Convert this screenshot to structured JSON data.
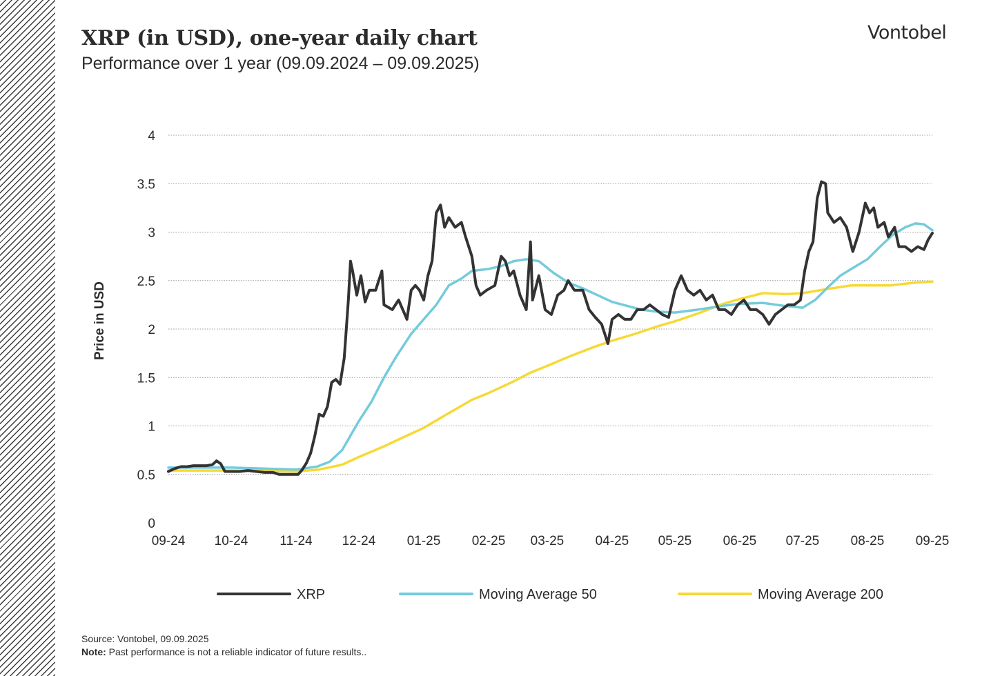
{
  "header": {
    "title": "XRP (in USD), one-year daily chart",
    "subtitle": "Performance over 1 year (09.09.2024 – 09.09.2025)",
    "brand": "Vontobel"
  },
  "footer": {
    "source": "Source: Vontobel, 09.09.2025",
    "note_label": "Note:",
    "note_text": " Past performance is not a reliable indicator of future results.."
  },
  "chart_data": {
    "type": "line",
    "ylabel": "Price in USD",
    "ylim": [
      0,
      4
    ],
    "yticks": [
      0,
      0.5,
      1,
      1.5,
      2,
      2.5,
      3,
      3.5,
      4
    ],
    "ytick_labels": [
      "0",
      "0.5",
      "1",
      "1.5",
      "2",
      "2.5",
      "3",
      "3.5",
      "4"
    ],
    "x_date_range": [
      "2024-09-09",
      "2025-09-09"
    ],
    "xticks": [
      {
        "date": "2024-09-09",
        "label": "09-24"
      },
      {
        "date": "2024-10-09",
        "label": "10-24"
      },
      {
        "date": "2024-11-09",
        "label": "11-24"
      },
      {
        "date": "2024-12-09",
        "label": "12-24"
      },
      {
        "date": "2025-01-09",
        "label": "01-25"
      },
      {
        "date": "2025-02-09",
        "label": "02-25"
      },
      {
        "date": "2025-03-09",
        "label": "03-25"
      },
      {
        "date": "2025-04-09",
        "label": "04-25"
      },
      {
        "date": "2025-05-09",
        "label": "05-25"
      },
      {
        "date": "2025-06-09",
        "label": "06-25"
      },
      {
        "date": "2025-07-09",
        "label": "07-25"
      },
      {
        "date": "2025-08-09",
        "label": "08-25"
      },
      {
        "date": "2025-09-09",
        "label": "09-25"
      }
    ],
    "grid": "horizontal dotted",
    "legend_position": "bottom",
    "series": [
      {
        "name": "XRP",
        "color": "#333333",
        "points": [
          [
            "2024-09-09",
            0.53
          ],
          [
            "2024-09-12",
            0.56
          ],
          [
            "2024-09-15",
            0.58
          ],
          [
            "2024-09-18",
            0.58
          ],
          [
            "2024-09-21",
            0.59
          ],
          [
            "2024-09-24",
            0.59
          ],
          [
            "2024-09-27",
            0.59
          ],
          [
            "2024-09-30",
            0.6
          ],
          [
            "2024-10-02",
            0.64
          ],
          [
            "2024-10-04",
            0.61
          ],
          [
            "2024-10-06",
            0.53
          ],
          [
            "2024-10-09",
            0.53
          ],
          [
            "2024-10-13",
            0.53
          ],
          [
            "2024-10-17",
            0.54
          ],
          [
            "2024-10-21",
            0.53
          ],
          [
            "2024-10-25",
            0.52
          ],
          [
            "2024-10-29",
            0.52
          ],
          [
            "2024-11-01",
            0.5
          ],
          [
            "2024-11-04",
            0.5
          ],
          [
            "2024-11-07",
            0.5
          ],
          [
            "2024-11-10",
            0.5
          ],
          [
            "2024-11-12",
            0.55
          ],
          [
            "2024-11-14",
            0.62
          ],
          [
            "2024-11-16",
            0.72
          ],
          [
            "2024-11-18",
            0.9
          ],
          [
            "2024-11-20",
            1.12
          ],
          [
            "2024-11-22",
            1.1
          ],
          [
            "2024-11-24",
            1.2
          ],
          [
            "2024-11-26",
            1.45
          ],
          [
            "2024-11-28",
            1.48
          ],
          [
            "2024-11-30",
            1.43
          ],
          [
            "2024-12-02",
            1.7
          ],
          [
            "2024-12-04",
            2.3
          ],
          [
            "2024-12-05",
            2.7
          ],
          [
            "2024-12-06",
            2.6
          ],
          [
            "2024-12-08",
            2.35
          ],
          [
            "2024-12-10",
            2.55
          ],
          [
            "2024-12-12",
            2.28
          ],
          [
            "2024-12-14",
            2.4
          ],
          [
            "2024-12-17",
            2.4
          ],
          [
            "2024-12-20",
            2.6
          ],
          [
            "2024-12-21",
            2.25
          ],
          [
            "2024-12-25",
            2.2
          ],
          [
            "2024-12-28",
            2.3
          ],
          [
            "2025-01-01",
            2.1
          ],
          [
            "2025-01-03",
            2.4
          ],
          [
            "2025-01-05",
            2.45
          ],
          [
            "2025-01-07",
            2.4
          ],
          [
            "2025-01-09",
            2.3
          ],
          [
            "2025-01-11",
            2.55
          ],
          [
            "2025-01-13",
            2.7
          ],
          [
            "2025-01-15",
            3.2
          ],
          [
            "2025-01-17",
            3.28
          ],
          [
            "2025-01-19",
            3.05
          ],
          [
            "2025-01-21",
            3.15
          ],
          [
            "2025-01-24",
            3.05
          ],
          [
            "2025-01-27",
            3.1
          ],
          [
            "2025-01-29",
            2.95
          ],
          [
            "2025-02-01",
            2.75
          ],
          [
            "2025-02-03",
            2.45
          ],
          [
            "2025-02-05",
            2.35
          ],
          [
            "2025-02-08",
            2.4
          ],
          [
            "2025-02-12",
            2.45
          ],
          [
            "2025-02-15",
            2.75
          ],
          [
            "2025-02-17",
            2.7
          ],
          [
            "2025-02-19",
            2.55
          ],
          [
            "2025-02-21",
            2.6
          ],
          [
            "2025-02-24",
            2.35
          ],
          [
            "2025-02-27",
            2.2
          ],
          [
            "2025-03-01",
            2.9
          ],
          [
            "2025-03-02",
            2.3
          ],
          [
            "2025-03-05",
            2.55
          ],
          [
            "2025-03-08",
            2.2
          ],
          [
            "2025-03-11",
            2.15
          ],
          [
            "2025-03-14",
            2.35
          ],
          [
            "2025-03-17",
            2.4
          ],
          [
            "2025-03-19",
            2.5
          ],
          [
            "2025-03-22",
            2.4
          ],
          [
            "2025-03-26",
            2.4
          ],
          [
            "2025-03-29",
            2.2
          ],
          [
            "2025-04-01",
            2.12
          ],
          [
            "2025-04-04",
            2.05
          ],
          [
            "2025-04-07",
            1.85
          ],
          [
            "2025-04-09",
            2.1
          ],
          [
            "2025-04-12",
            2.15
          ],
          [
            "2025-04-15",
            2.1
          ],
          [
            "2025-04-18",
            2.1
          ],
          [
            "2025-04-21",
            2.2
          ],
          [
            "2025-04-24",
            2.2
          ],
          [
            "2025-04-27",
            2.25
          ],
          [
            "2025-04-30",
            2.2
          ],
          [
            "2025-05-03",
            2.15
          ],
          [
            "2025-05-06",
            2.12
          ],
          [
            "2025-05-09",
            2.4
          ],
          [
            "2025-05-12",
            2.55
          ],
          [
            "2025-05-15",
            2.4
          ],
          [
            "2025-05-18",
            2.35
          ],
          [
            "2025-05-21",
            2.4
          ],
          [
            "2025-05-24",
            2.3
          ],
          [
            "2025-05-27",
            2.35
          ],
          [
            "2025-05-30",
            2.2
          ],
          [
            "2025-06-02",
            2.2
          ],
          [
            "2025-06-05",
            2.15
          ],
          [
            "2025-06-08",
            2.25
          ],
          [
            "2025-06-11",
            2.3
          ],
          [
            "2025-06-14",
            2.2
          ],
          [
            "2025-06-17",
            2.2
          ],
          [
            "2025-06-20",
            2.15
          ],
          [
            "2025-06-23",
            2.05
          ],
          [
            "2025-06-26",
            2.15
          ],
          [
            "2025-06-29",
            2.2
          ],
          [
            "2025-07-02",
            2.25
          ],
          [
            "2025-07-05",
            2.25
          ],
          [
            "2025-07-08",
            2.3
          ],
          [
            "2025-07-10",
            2.6
          ],
          [
            "2025-07-12",
            2.8
          ],
          [
            "2025-07-14",
            2.9
          ],
          [
            "2025-07-16",
            3.35
          ],
          [
            "2025-07-18",
            3.52
          ],
          [
            "2025-07-20",
            3.5
          ],
          [
            "2025-07-21",
            3.2
          ],
          [
            "2025-07-24",
            3.1
          ],
          [
            "2025-07-27",
            3.15
          ],
          [
            "2025-07-30",
            3.05
          ],
          [
            "2025-08-02",
            2.8
          ],
          [
            "2025-08-05",
            3.0
          ],
          [
            "2025-08-08",
            3.3
          ],
          [
            "2025-08-10",
            3.2
          ],
          [
            "2025-08-12",
            3.25
          ],
          [
            "2025-08-14",
            3.05
          ],
          [
            "2025-08-17",
            3.1
          ],
          [
            "2025-08-19",
            2.95
          ],
          [
            "2025-08-22",
            3.05
          ],
          [
            "2025-08-24",
            2.85
          ],
          [
            "2025-08-27",
            2.85
          ],
          [
            "2025-08-30",
            2.8
          ],
          [
            "2025-09-02",
            2.85
          ],
          [
            "2025-09-05",
            2.82
          ],
          [
            "2025-09-07",
            2.92
          ],
          [
            "2025-09-09",
            2.99
          ]
        ]
      },
      {
        "name": "Moving Average 50",
        "color": "#74cbdc",
        "points": [
          [
            "2024-09-09",
            0.57
          ],
          [
            "2024-10-09",
            0.57
          ],
          [
            "2024-11-09",
            0.55
          ],
          [
            "2024-11-19",
            0.58
          ],
          [
            "2024-11-25",
            0.63
          ],
          [
            "2024-12-01",
            0.75
          ],
          [
            "2024-12-09",
            1.05
          ],
          [
            "2024-12-15",
            1.25
          ],
          [
            "2024-12-21",
            1.5
          ],
          [
            "2024-12-27",
            1.72
          ],
          [
            "2025-01-03",
            1.95
          ],
          [
            "2025-01-09",
            2.1
          ],
          [
            "2025-01-15",
            2.25
          ],
          [
            "2025-01-21",
            2.45
          ],
          [
            "2025-01-27",
            2.52
          ],
          [
            "2025-02-01",
            2.6
          ],
          [
            "2025-02-09",
            2.62
          ],
          [
            "2025-02-15",
            2.65
          ],
          [
            "2025-02-21",
            2.7
          ],
          [
            "2025-02-27",
            2.72
          ],
          [
            "2025-03-05",
            2.7
          ],
          [
            "2025-03-12",
            2.58
          ],
          [
            "2025-03-19",
            2.48
          ],
          [
            "2025-03-26",
            2.42
          ],
          [
            "2025-04-02",
            2.35
          ],
          [
            "2025-04-09",
            2.28
          ],
          [
            "2025-04-16",
            2.24
          ],
          [
            "2025-04-23",
            2.2
          ],
          [
            "2025-04-30",
            2.18
          ],
          [
            "2025-05-09",
            2.17
          ],
          [
            "2025-05-20",
            2.2
          ],
          [
            "2025-06-01",
            2.24
          ],
          [
            "2025-06-09",
            2.26
          ],
          [
            "2025-06-20",
            2.27
          ],
          [
            "2025-06-30",
            2.24
          ],
          [
            "2025-07-09",
            2.22
          ],
          [
            "2025-07-15",
            2.3
          ],
          [
            "2025-07-21",
            2.43
          ],
          [
            "2025-07-27",
            2.55
          ],
          [
            "2025-08-02",
            2.63
          ],
          [
            "2025-08-09",
            2.72
          ],
          [
            "2025-08-15",
            2.85
          ],
          [
            "2025-08-21",
            2.97
          ],
          [
            "2025-08-27",
            3.05
          ],
          [
            "2025-09-01",
            3.09
          ],
          [
            "2025-09-05",
            3.08
          ],
          [
            "2025-09-09",
            3.02
          ]
        ]
      },
      {
        "name": "Moving Average 200",
        "color": "#f7d934",
        "points": [
          [
            "2024-09-09",
            0.54
          ],
          [
            "2024-10-09",
            0.54
          ],
          [
            "2024-11-09",
            0.53
          ],
          [
            "2024-11-20",
            0.55
          ],
          [
            "2024-12-01",
            0.6
          ],
          [
            "2024-12-09",
            0.68
          ],
          [
            "2024-12-20",
            0.78
          ],
          [
            "2025-01-01",
            0.9
          ],
          [
            "2025-01-09",
            0.98
          ],
          [
            "2025-01-20",
            1.12
          ],
          [
            "2025-02-01",
            1.27
          ],
          [
            "2025-02-09",
            1.34
          ],
          [
            "2025-02-20",
            1.45
          ],
          [
            "2025-03-01",
            1.55
          ],
          [
            "2025-03-09",
            1.62
          ],
          [
            "2025-03-20",
            1.72
          ],
          [
            "2025-04-01",
            1.82
          ],
          [
            "2025-04-09",
            1.88
          ],
          [
            "2025-04-20",
            1.95
          ],
          [
            "2025-05-01",
            2.03
          ],
          [
            "2025-05-09",
            2.08
          ],
          [
            "2025-05-20",
            2.16
          ],
          [
            "2025-06-01",
            2.26
          ],
          [
            "2025-06-09",
            2.31
          ],
          [
            "2025-06-20",
            2.37
          ],
          [
            "2025-07-01",
            2.36
          ],
          [
            "2025-07-09",
            2.37
          ],
          [
            "2025-07-20",
            2.41
          ],
          [
            "2025-08-01",
            2.45
          ],
          [
            "2025-08-09",
            2.45
          ],
          [
            "2025-08-20",
            2.45
          ],
          [
            "2025-09-01",
            2.48
          ],
          [
            "2025-09-09",
            2.49
          ]
        ]
      }
    ]
  }
}
